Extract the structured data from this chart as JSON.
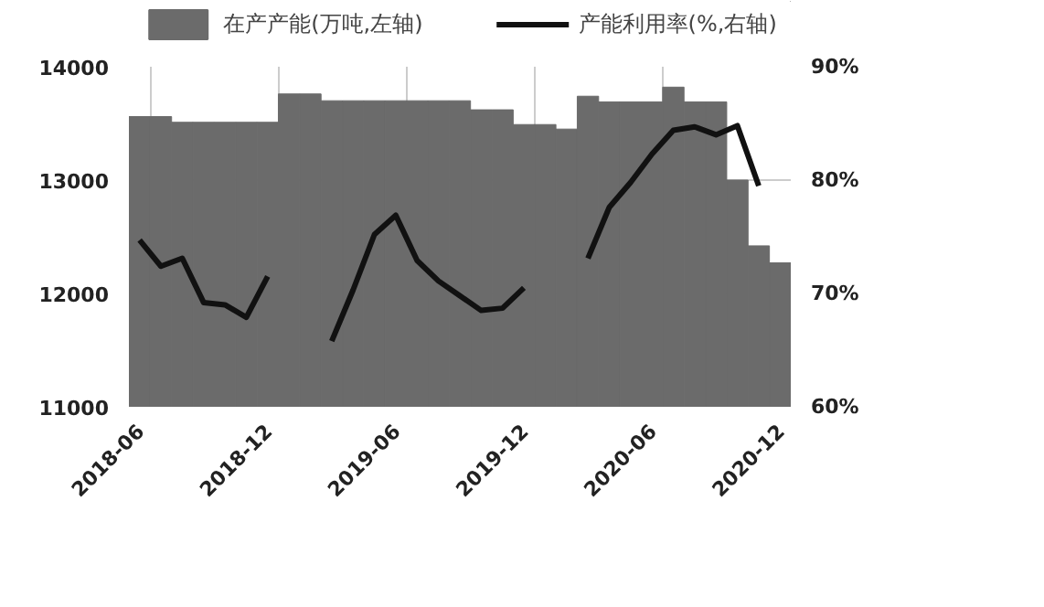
{
  "chart_data": {
    "type": "bar",
    "categories": [
      "2018-06",
      null,
      null,
      null,
      null,
      null,
      "2018-12",
      null,
      null,
      null,
      null,
      null,
      "2019-06",
      null,
      null,
      null,
      null,
      null,
      "2019-12",
      null,
      null,
      null,
      null,
      null,
      "2020-06",
      null,
      null,
      null,
      null,
      null,
      "2020-12"
    ],
    "series": [
      {
        "name": "在产产能(万吨,左轴)",
        "color": "#6b6b6b",
        "values": [
          13560,
          13560,
          13510,
          13510,
          13510,
          13510,
          13510,
          13760,
          13760,
          13700,
          13700,
          13700,
          13700,
          13700,
          13700,
          13700,
          13620,
          13620,
          13490,
          13490,
          13450,
          13740,
          13690,
          13690,
          13690,
          13820,
          13690,
          13690,
          13000,
          12420,
          12270
        ]
      },
      {
        "name": "产能利用率(%,右轴)",
        "type": "line",
        "axis": "y2",
        "color": "#111111",
        "values": [
          74.7,
          72.4,
          73.1,
          69.2,
          69.0,
          67.9,
          71.5,
          null,
          null,
          65.8,
          70.3,
          75.2,
          76.9,
          72.9,
          71.1,
          69.8,
          68.5,
          68.7,
          70.5,
          null,
          null,
          73.1,
          77.6,
          79.8,
          82.3,
          84.4,
          84.7,
          84.0,
          84.8,
          79.5,
          null
        ]
      }
    ],
    "ylim": [
      11000,
      14000
    ],
    "yticks": [
      11000,
      12000,
      13000,
      14000
    ],
    "y2lim": [
      60,
      90
    ],
    "y2ticks": [
      {
        "value": 60,
        "label": "60%"
      },
      {
        "value": 70,
        "label": "70%"
      },
      {
        "value": 80,
        "label": "80%"
      },
      {
        "value": 90,
        "label": "90%"
      }
    ],
    "grid": true,
    "legend": "top",
    "line_style": "solid",
    "marker": "none"
  }
}
